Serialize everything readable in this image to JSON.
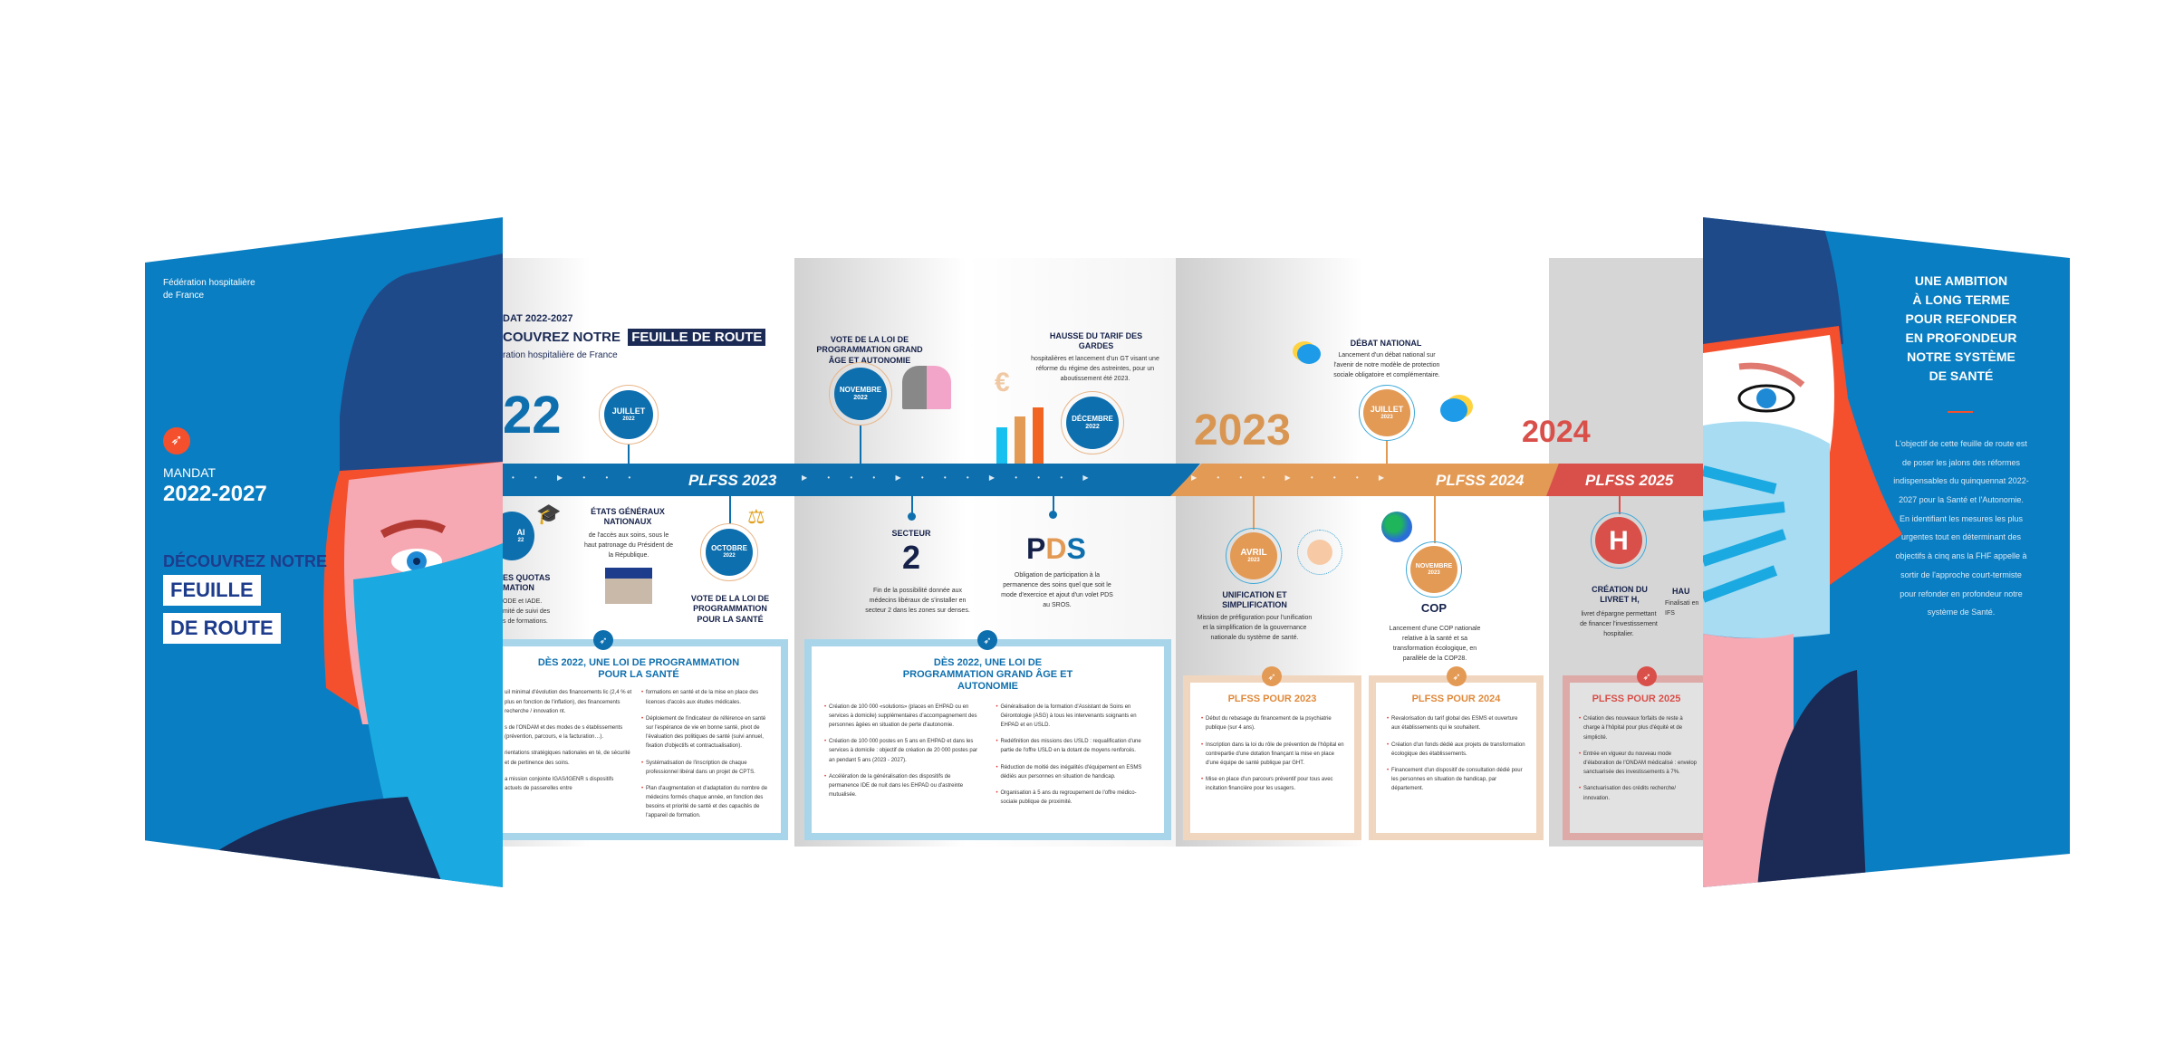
{
  "colors": {
    "brand_blue": "#0a7ec2",
    "navy": "#1e3c8c",
    "timeline_blue": "#0e6fae",
    "orange": "#e39a55",
    "red": "#d9504a"
  },
  "cover_left": {
    "org": "Fédération hospitalière",
    "org2": "de France",
    "icon": "compass-icon",
    "mandat": "MANDAT",
    "years": "2022-2027",
    "decouvrez": "DÉCOUVREZ NOTRE",
    "feuille": "FEUILLE",
    "de_route": "DE ROUTE"
  },
  "panel1": {
    "mandat": "DAT 2022-2027",
    "decouvrez": "COUVREZ NOTRE",
    "feuille": "FEUILLE DE ROUTE",
    "org": "ration hospitalière de France",
    "year": "22",
    "juillet": {
      "month": "JUILLET",
      "year": "2022"
    },
    "plfss": "PLFSS 2023",
    "mai": {
      "month": "AI",
      "year": "22"
    },
    "quotas": "ES QUOTAS",
    "quotas2": "MATION",
    "quotas_text": [
      "ODE et IADE.",
      "mité de suivi des",
      "s de formations."
    ],
    "etats": {
      "title": "ÉTATS GÉNÉRAUX NATIONAUX",
      "text": "de l'accès aux soins, sous le haut patronage du Président de la République."
    },
    "octobre": {
      "month": "OCTOBRE",
      "year": "2022"
    },
    "vote": "VOTE DE LA LOI DE PROGRAMMATION POUR LA SANTÉ",
    "box": {
      "title": "DÈS 2022, UNE LOI DE PROGRAMMATION POUR LA SANTÉ",
      "col1": [
        "uil minimal d'évolution des financements lic (2,4 % et plus en fonction de l'inflation), des financements recherche / innovation nt.",
        "s de l'ONDAM et des modes de s établissements (prévention, parcours, e la facturation…).",
        "rientations stratégiques nationales en té, de sécurité et de pertinence des soins.",
        "a mission conjointe IGAS/IGENR s dispositifs actuels de passerelles entre"
      ],
      "col2": [
        "formations en santé et de la mise en place des licences d'accès aux études médicales.",
        "Déploiement de l'indicateur de référence en santé sur l'espérance de vie en bonne santé, pivot de l'évaluation des politiques de santé (suivi annuel, fixation d'objectifs et contractualisation).",
        "Systématisation de l'inscription de chaque professionnel libéral dans un projet de CPTS.",
        "Plan d'augmentation et d'adaptation du nombre de médecins formés chaque année, en fonction des besoins et priorité de santé et des capacités de l'appareil de formation."
      ]
    }
  },
  "panel2": {
    "vote": "VOTE DE LA LOI DE PROGRAMMATION GRAND ÂGE ET AUTONOMIE",
    "novembre": {
      "month": "NOVEMBRE",
      "year": "2022"
    },
    "hausse": {
      "title": "HAUSSE DU TARIF DES GARDES",
      "text": "hospitalières et lancement d'un GT visant une réforme du régime des astreintes, pour un aboutissement été 2023."
    },
    "decembre": {
      "month": "DÉCEMBRE",
      "year": "2022"
    },
    "secteur": {
      "title": "SECTEUR",
      "number": "2",
      "text": "Fin de la possibilité donnée aux médecins libéraux de s'installer en secteur 2 dans les zones sur denses."
    },
    "pds": {
      "p": "P",
      "d": "D",
      "s": "S",
      "text": "Obligation de participation à la permanence des soins quel que soit le mode d'exercice et ajout d'un volet PDS au SROS."
    },
    "box": {
      "title": "DÈS 2022, UNE LOI DE PROGRAMMATION GRAND ÂGE ET AUTONOMIE",
      "col1": [
        "Création de 100 000 «solutions» (places en EHPAD ou en services à domicile) supplémentaires d'accompagnement des personnes âgées en situation de perte d'autonomie.",
        "Création de 100 000 postes en 5 ans en EHPAD et dans les services à domicile : objectif de création de 20 000 postes par an pendant 5 ans (2023 - 2027).",
        "Accélération de la généralisation des dispositifs de permanence IDE de nuit dans les EHPAD ou d'astreinte mutualisée."
      ],
      "col2": [
        "Généralisation de la formation d'Assistant de Soins en Gérontologie (ASG) à tous les intervenants soignants en EHPAD et en USLD.",
        "Redéfinition des missions des USLD : requalification d'une partie de l'offre USLD en la dotant de moyens renforcés.",
        "Réduction de moitié des inégalités d'équipement en ESMS dédiés aux personnes en situation de handicap.",
        "Organisation à 5 ans du regroupement de l'offre médico-sociale publique de proximité."
      ]
    }
  },
  "panel3": {
    "year": "2023",
    "debat": {
      "title": "DÉBAT NATIONAL",
      "text": "Lancement d'un débat national sur l'avenir de notre modèle de protection sociale obligatoire et complémentaire."
    },
    "juillet": {
      "month": "JUILLET",
      "year": "2023"
    },
    "plfss": "PLFSS 2024",
    "avril": {
      "month": "AVRIL",
      "year": "2023"
    },
    "unification": {
      "title": "UNIFICATION ET SIMPLIFICATION",
      "text": "Mission de préfiguration pour l'unification et la simplification de la gouvernance nationale du système de santé."
    },
    "novembre": {
      "month": "NOVEMBRE",
      "year": "2023"
    },
    "cop": {
      "title": "COP",
      "text": "Lancement d'une COP nationale relative à la santé et sa transformation écologique, en parallèle de la COP28."
    },
    "box2023": {
      "title": "PLFSS POUR 2023",
      "items": [
        "Début du rebasage du financement de la psychiatrie publique (sur 4 ans).",
        "Inscription dans la loi du rôle de prévention de l'hôpital en contrepartie d'une dotation finançant la mise en place d'une équipe de santé publique par GHT.",
        "Mise en place d'un parcours préventif pour tous avec incitation financière pour les usagers."
      ]
    },
    "box2024": {
      "title": "PLFSS POUR 2024",
      "items": [
        "Revalorisation du tarif global des ESMS et ouverture aux établissements qui le souhaitent.",
        "Création d'un fonds dédié aux projets de transformation écologique des établissements.",
        "Financement d'un dispositif de consultation dédié pour les personnes en situation de handicap, par département."
      ]
    }
  },
  "panel4": {
    "year": "2024",
    "plfss": "PLFSS 2025",
    "h": "H",
    "livret": {
      "title": "CRÉATION DU LIVRET H,",
      "text": "livret d'épargne permettant de financer l'investissement hospitalier."
    },
    "hau": "HAU",
    "hau_text": "Finalisati en IFS",
    "box2025": {
      "title": "PLFSS POUR 2025",
      "items": [
        "Création des nouveaux forfaits de reste à charge à l'hôpital pour plus d'équité et de simplicité.",
        "Entrée en vigueur du nouveau mode d'élaboration de l'ONDAM médicalisé : envelop sanctuarisée des investissements à 7%.",
        "Sanctuarisation des crédits recherche/ innovation."
      ]
    }
  },
  "cover_right": {
    "title": [
      "UNE AMBITION",
      "À LONG TERME",
      "POUR REFONDER",
      "EN PROFONDEUR",
      "NOTRE SYSTÈME",
      "DE SANTÉ"
    ],
    "text": "L'objectif de cette feuille de route est de poser les jalons des réformes indispensables du quinquennat 2022-2027 pour la Santé et l'Autonomie. En identifiant les mesures les plus urgentes tout en déterminant des objectifs à cinq ans la FHF appelle à sortir de l'approche court-termiste pour refonder en profondeur notre système de Santé."
  }
}
